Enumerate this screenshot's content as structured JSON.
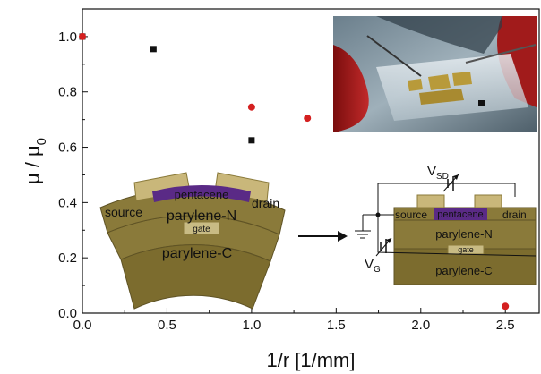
{
  "chart_data": {
    "type": "scatter",
    "xlabel": "1/r [1/mm]",
    "ylabel": "μ / μ",
    "ylabel_subscript": "0",
    "xlim": [
      0.0,
      2.7
    ],
    "ylim": [
      0.0,
      1.1
    ],
    "xticks": [
      "0.0",
      "0.5",
      "1.0",
      "1.5",
      "2.0",
      "2.5"
    ],
    "xtick_values": [
      0.0,
      0.5,
      1.0,
      1.5,
      2.0,
      2.5
    ],
    "yticks": [
      "0.0",
      "0.2",
      "0.4",
      "0.6",
      "0.8",
      "1.0"
    ],
    "ytick_values": [
      0.0,
      0.2,
      0.4,
      0.6,
      0.8,
      1.0
    ],
    "grid": false,
    "series": [
      {
        "marker": "square",
        "color": "#111111",
        "x": [
          0.0,
          0.42,
          1.0
        ],
        "y": [
          1.0,
          0.955,
          0.625
        ]
      },
      {
        "marker": "circle",
        "color": "#d42020",
        "x": [
          0.0,
          1.0,
          1.33,
          2.5
        ],
        "y": [
          1.0,
          0.745,
          0.705,
          0.025
        ]
      }
    ]
  },
  "diagram_bent": {
    "source": "source",
    "drain": "drain",
    "channel": "pentacene",
    "dielectric_top": "parylene-N",
    "gate": "gate",
    "substrate": "parylene-C"
  },
  "diagram_flat": {
    "source": "source",
    "drain": "drain",
    "channel": "pentacene",
    "dielectric_top": "parylene-N",
    "gate": "gate",
    "substrate": "parylene-C",
    "vsd_main": "V",
    "vsd_sub": "SD",
    "vg_main": "V",
    "vg_sub": "G"
  },
  "colors": {
    "parylene": "#8a7a3a",
    "parylene_dark": "#5f5325",
    "electrode": "#c9b77a",
    "pentacene": "#5a2a86",
    "gate": "#c8bb84",
    "marker_black": "#111111",
    "marker_red": "#d42020"
  }
}
